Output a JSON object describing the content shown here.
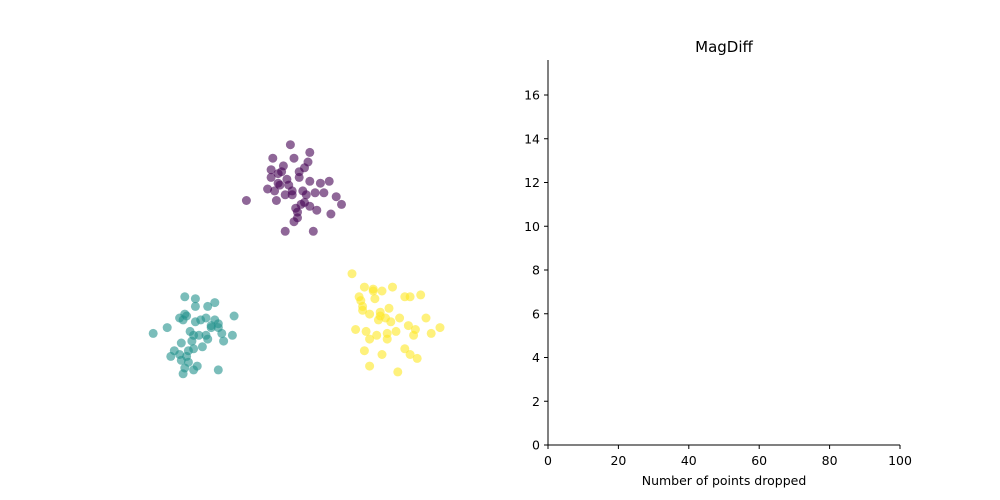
{
  "chart_data": [
    {
      "type": "scatter",
      "title": "",
      "xlabel": "",
      "ylabel": "",
      "axes_visible": false,
      "xlim": [
        -10,
        10
      ],
      "ylim": [
        -10,
        10
      ],
      "series": [
        {
          "color": "#440154",
          "points": [
            [
              -1.6,
              4.9
            ],
            [
              -3.1,
              2.7
            ],
            [
              -1.7,
              4.3
            ],
            [
              0.5,
              5.2
            ],
            [
              1.6,
              3.7
            ],
            [
              2.3,
              2.5
            ],
            [
              2.0,
              2.9
            ],
            [
              -0.6,
              5.6
            ],
            [
              -0.4,
              4.9
            ],
            [
              -1.0,
              4.5
            ],
            [
              -0.1,
              4.2
            ],
            [
              0.2,
              4.4
            ],
            [
              -0.8,
              3.8
            ],
            [
              -1.3,
              4.1
            ],
            [
              -1.5,
              3.2
            ],
            [
              -0.5,
              3.0
            ],
            [
              0.1,
              3.2
            ],
            [
              0.5,
              3.7
            ],
            [
              0.0,
              2.5
            ],
            [
              -0.2,
              2.1
            ],
            [
              -0.4,
              1.6
            ],
            [
              -0.9,
              1.1
            ],
            [
              0.7,
              1.1
            ],
            [
              0.9,
              2.2
            ],
            [
              1.3,
              3.1
            ],
            [
              1.7,
              2.0
            ],
            [
              0.4,
              4.7
            ],
            [
              0.3,
              3.0
            ],
            [
              -0.1,
              3.9
            ],
            [
              -1.2,
              3.5
            ],
            [
              -1.7,
              3.9
            ],
            [
              -1.9,
              3.3
            ],
            [
              -1.4,
              2.7
            ],
            [
              -0.7,
              3.5
            ],
            [
              0.2,
              2.6
            ],
            [
              0.5,
              2.4
            ],
            [
              1.1,
              3.6
            ],
            [
              0.8,
              3.1
            ],
            [
              -0.3,
              2.3
            ],
            [
              -0.5,
              3.2
            ],
            [
              -1.1,
              4.2
            ],
            [
              -1.3,
              3.6
            ],
            [
              -0.9,
              3.0
            ],
            [
              -0.2,
              1.8
            ]
          ]
        },
        {
          "color": "#21918c",
          "points": [
            [
              -7.6,
              -3.9
            ],
            [
              -8.4,
              -4.2
            ],
            [
              -6.1,
              -6.1
            ],
            [
              -5.1,
              -3.9
            ],
            [
              -4.9,
              -2.6
            ],
            [
              -5.3,
              -2.8
            ],
            [
              -6.7,
              -3.5
            ],
            [
              -6.3,
              -4.1
            ],
            [
              -6.6,
              -2.3
            ],
            [
              -6.0,
              -2.8
            ],
            [
              -5.4,
              -3.4
            ],
            [
              -4.7,
              -3.7
            ],
            [
              -5.3,
              -4.5
            ],
            [
              -6.2,
              -4.6
            ],
            [
              -6.8,
              -4.7
            ],
            [
              -7.2,
              -5.1
            ],
            [
              -6.5,
              -5.4
            ],
            [
              -5.4,
              -4.3
            ],
            [
              -5.1,
              -3.8
            ],
            [
              -4.4,
              -4.6
            ],
            [
              -3.9,
              -4.3
            ],
            [
              -3.8,
              -3.3
            ],
            [
              -4.5,
              -4.2
            ],
            [
              -5.6,
              -4.9
            ],
            [
              -6.1,
              -5.0
            ],
            [
              -6.9,
              -5.3
            ],
            [
              -7.4,
              -5.4
            ],
            [
              -6.8,
              -5.6
            ],
            [
              -6.4,
              -5.7
            ],
            [
              -5.9,
              -5.9
            ],
            [
              -6.6,
              -3.2
            ],
            [
              -6.0,
              -3.6
            ],
            [
              -6.1,
              -4.3
            ],
            [
              -5.8,
              -4.3
            ],
            [
              -6.5,
              -3.3
            ],
            [
              -6.0,
              -2.4
            ],
            [
              -5.7,
              -3.5
            ],
            [
              -6.9,
              -3.4
            ],
            [
              -4.9,
              -3.5
            ],
            [
              -4.7,
              -3.9
            ],
            [
              -4.7,
              -6.1
            ],
            [
              -6.7,
              -6.3
            ],
            [
              -6.4,
              -5.1
            ],
            [
              -6.6,
              -6.0
            ]
          ]
        },
        {
          "color": "#fde725",
          "points": [
            [
              2.9,
              -1.1
            ],
            [
              3.6,
              -1.8
            ],
            [
              4.1,
              -2.0
            ],
            [
              3.9,
              -3.2
            ],
            [
              4.2,
              -2.4
            ],
            [
              4.6,
              -2.0
            ],
            [
              5.2,
              -1.8
            ],
            [
              6.2,
              -2.3
            ],
            [
              6.8,
              -2.2
            ],
            [
              7.9,
              -3.9
            ],
            [
              7.4,
              -4.2
            ],
            [
              6.4,
              -4.3
            ],
            [
              5.9,
              -5.0
            ],
            [
              5.5,
              -6.2
            ],
            [
              4.6,
              -5.3
            ],
            [
              3.9,
              -5.9
            ],
            [
              3.6,
              -5.1
            ],
            [
              3.1,
              -4.0
            ],
            [
              3.7,
              -4.1
            ],
            [
              4.3,
              -4.3
            ],
            [
              4.9,
              -4.2
            ],
            [
              4.5,
              -3.1
            ],
            [
              5.1,
              -3.6
            ],
            [
              5.6,
              -3.4
            ],
            [
              6.1,
              -3.8
            ],
            [
              6.5,
              -4.0
            ],
            [
              6.2,
              -5.3
            ],
            [
              6.6,
              -5.5
            ],
            [
              5.0,
              -2.9
            ],
            [
              4.4,
              -3.5
            ],
            [
              3.9,
              -4.5
            ],
            [
              4.8,
              -3.4
            ],
            [
              5.4,
              -4.1
            ],
            [
              3.3,
              -2.3
            ],
            [
              3.4,
              -2.5
            ],
            [
              3.5,
              -2.8
            ],
            [
              3.5,
              -3.0
            ],
            [
              4.5,
              -3.3
            ],
            [
              4.9,
              -4.5
            ],
            [
              7.1,
              -3.4
            ],
            [
              5.9,
              -2.3
            ],
            [
              4.1,
              -1.9
            ]
          ]
        }
      ]
    },
    {
      "type": "line",
      "title": "MagDiff",
      "xlabel": "Number of points dropped",
      "ylabel": "",
      "xlim": [
        0,
        100
      ],
      "ylim": [
        0,
        17.6
      ],
      "xticks": [
        0,
        20,
        40,
        60,
        80,
        100
      ],
      "yticks": [
        0,
        2,
        4,
        6,
        8,
        10,
        12,
        14,
        16
      ],
      "series": []
    }
  ]
}
